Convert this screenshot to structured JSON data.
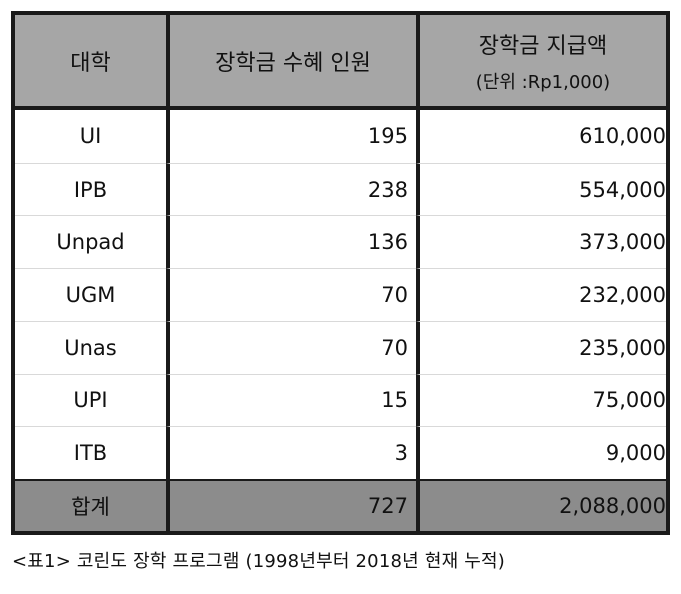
{
  "table": {
    "headers": {
      "university": "대학",
      "recipients": "장학금 수혜 인원",
      "amount": "장학금 지급액",
      "amount_unit": "(단위 :Rp1,000)"
    },
    "rows": [
      {
        "university": "UI",
        "recipients": "195",
        "amount": "610,000"
      },
      {
        "university": "IPB",
        "recipients": "238",
        "amount": "554,000"
      },
      {
        "university": "Unpad",
        "recipients": "136",
        "amount": "373,000"
      },
      {
        "university": "UGM",
        "recipients": "70",
        "amount": "232,000"
      },
      {
        "university": "Unas",
        "recipients": "70",
        "amount": "235,000"
      },
      {
        "university": "UPI",
        "recipients": "15",
        "amount": "75,000"
      },
      {
        "university": "ITB",
        "recipients": "3",
        "amount": "9,000"
      }
    ],
    "total": {
      "label": "합계",
      "recipients": "727",
      "amount": "2,088,000"
    }
  },
  "caption": "<표1> 코린도 장학 프로그램 (1998년부터 2018년 현재 누적)",
  "colors": {
    "header_bg": "#a6a6a6",
    "total_bg": "#8c8c8c",
    "border": "#1a1a1a",
    "row_divider": "#d9d9d9"
  }
}
